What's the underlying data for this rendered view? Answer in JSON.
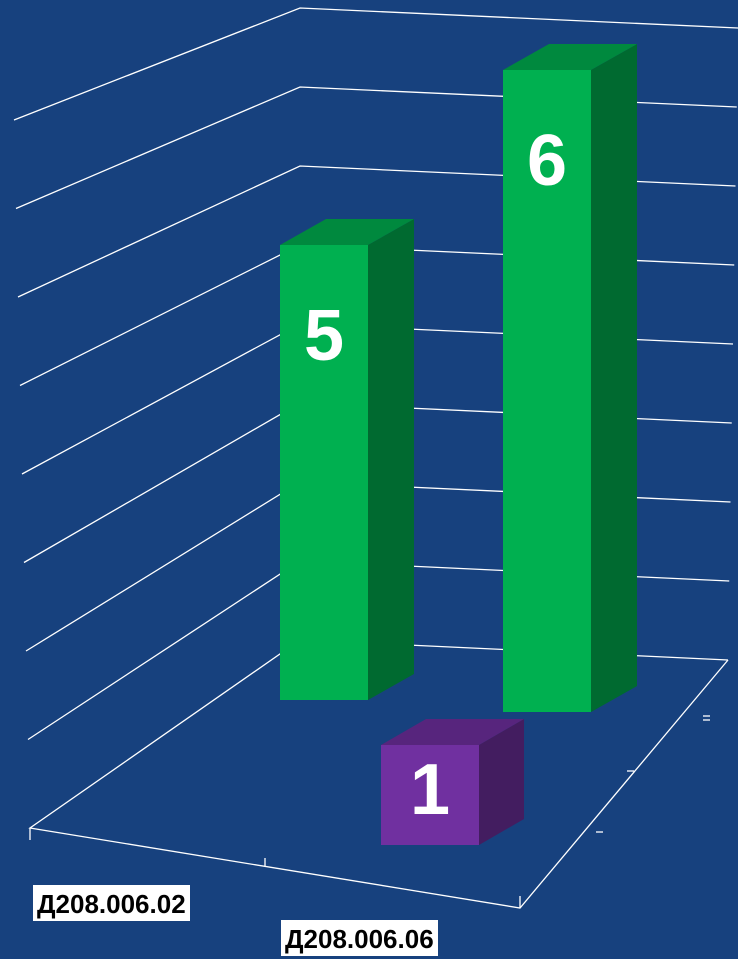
{
  "chart_data": {
    "type": "bar",
    "style": "3d",
    "title": "",
    "xlabel": "",
    "ylabel": "",
    "categories": [
      "Д208.006.02",
      "Д208.006.06"
    ],
    "series": [
      {
        "values": [
          5,
          6
        ],
        "color": "#00b050",
        "label_color": "#ffffff"
      },
      {
        "values": [
          null,
          1
        ],
        "color": "#7030a0",
        "label_color": "#ffffff"
      }
    ],
    "ylim": [
      0,
      8
    ],
    "grid": true,
    "legend": "none"
  },
  "colors": {
    "background": "#17417e",
    "grid": "#ffffff",
    "label_background": "#ffffff"
  }
}
